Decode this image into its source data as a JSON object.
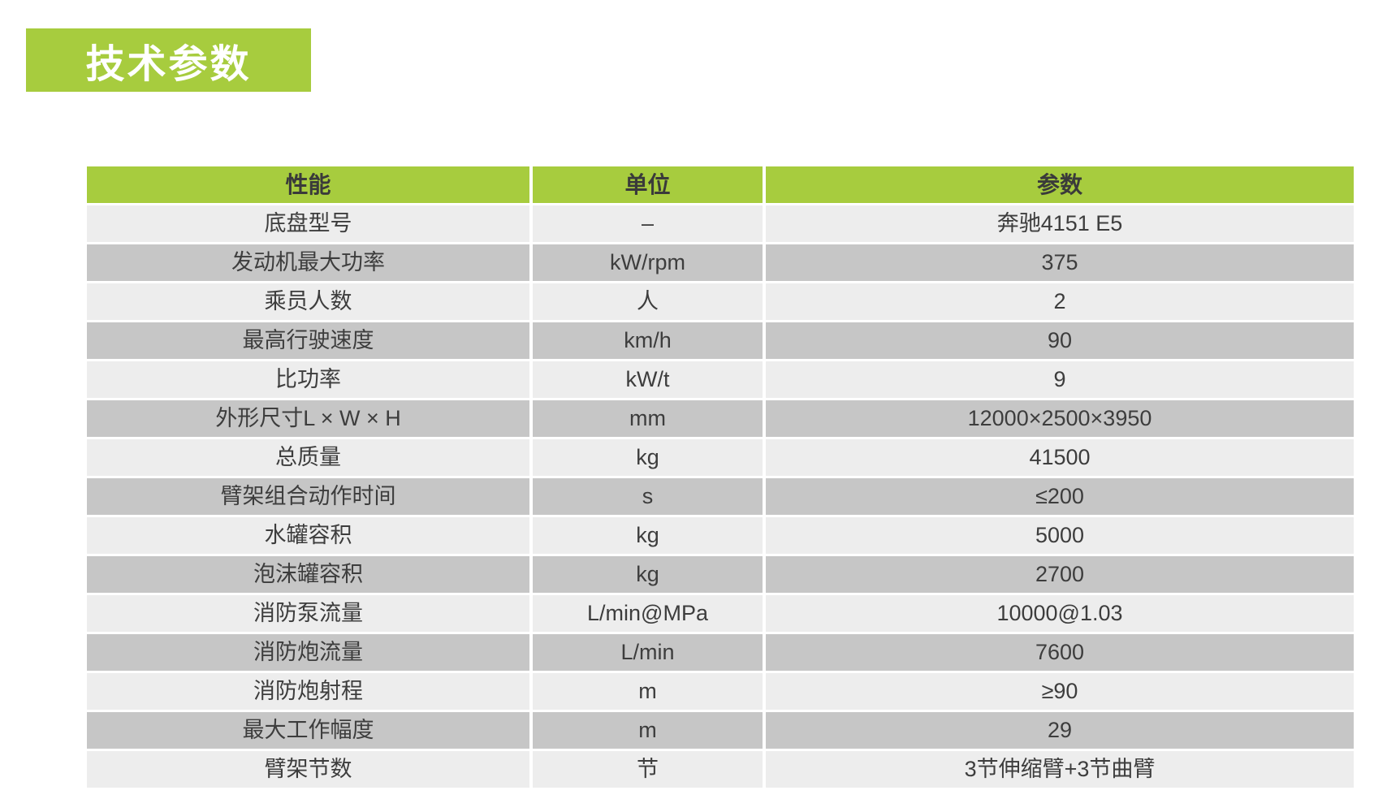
{
  "title": {
    "label": "技术参数"
  },
  "colors": {
    "accent": "#a7cc3e",
    "row_light": "#ededed",
    "row_dark": "#c6c6c6",
    "cell_text": "#3d3d3d",
    "title_text": "#ffffff"
  },
  "table": {
    "headers": [
      "性能",
      "单位",
      "参数"
    ],
    "rows": [
      {
        "name": "底盘型号",
        "unit": "–",
        "value": "奔驰4151 E5"
      },
      {
        "name": "发动机最大功率",
        "unit": "kW/rpm",
        "value": "375"
      },
      {
        "name": "乘员人数",
        "unit": "人",
        "value": "2"
      },
      {
        "name": "最高行驶速度",
        "unit": "km/h",
        "value": "90"
      },
      {
        "name": "比功率",
        "unit": "kW/t",
        "value": "9"
      },
      {
        "name": "外形尺寸L × W × H",
        "unit": "mm",
        "value": "12000×2500×3950"
      },
      {
        "name": "总质量",
        "unit": "kg",
        "value": "41500"
      },
      {
        "name": "臂架组合动作时间",
        "unit": "s",
        "value": "≤200"
      },
      {
        "name": "水罐容积",
        "unit": "kg",
        "value": "5000"
      },
      {
        "name": "泡沫罐容积",
        "unit": "kg",
        "value": "2700"
      },
      {
        "name": "消防泵流量",
        "unit": "L/min@MPa",
        "value": "10000@1.03"
      },
      {
        "name": "消防炮流量",
        "unit": "L/min",
        "value": "7600"
      },
      {
        "name": "消防炮射程",
        "unit": "m",
        "value": "≥90"
      },
      {
        "name": "最大工作幅度",
        "unit": "m",
        "value": "29"
      },
      {
        "name": "臂架节数",
        "unit": "节",
        "value": "3节伸缩臂+3节曲臂"
      }
    ]
  }
}
